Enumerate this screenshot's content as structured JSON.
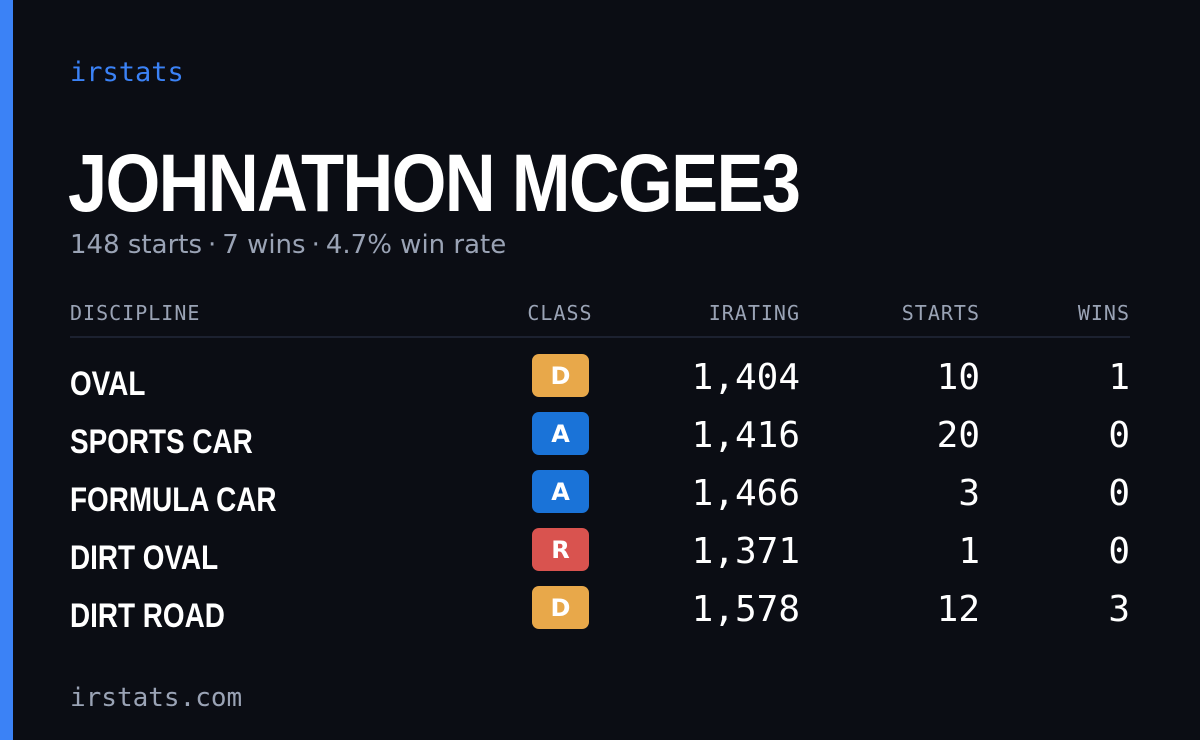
{
  "brand": "irstats",
  "driver": {
    "name": "JOHNATHON MCGEE3",
    "starts_text": "148 starts",
    "wins_text": "7 wins",
    "win_rate_text": "4.7% win rate",
    "separator": "·"
  },
  "table": {
    "headers": {
      "discipline": "DISCIPLINE",
      "class": "CLASS",
      "irating": "IRATING",
      "starts": "STARTS",
      "wins": "WINS"
    },
    "rows": [
      {
        "discipline": "OVAL",
        "class": "D",
        "class_color": "#e8a84a",
        "irating": "1,404",
        "starts": "10",
        "wins": "1"
      },
      {
        "discipline": "SPORTS CAR",
        "class": "A",
        "class_color": "#1a73d8",
        "irating": "1,416",
        "starts": "20",
        "wins": "0"
      },
      {
        "discipline": "FORMULA CAR",
        "class": "A",
        "class_color": "#1a73d8",
        "irating": "1,466",
        "starts": "3",
        "wins": "0"
      },
      {
        "discipline": "DIRT OVAL",
        "class": "R",
        "class_color": "#d9534f",
        "irating": "1,371",
        "starts": "1",
        "wins": "0"
      },
      {
        "discipline": "DIRT ROAD",
        "class": "D",
        "class_color": "#e8a84a",
        "irating": "1,578",
        "starts": "12",
        "wins": "3"
      }
    ]
  },
  "footer": "irstats.com",
  "colors": {
    "background": "#0b0d14",
    "accent": "#3b82f6",
    "muted_text": "#9aa3b5"
  }
}
